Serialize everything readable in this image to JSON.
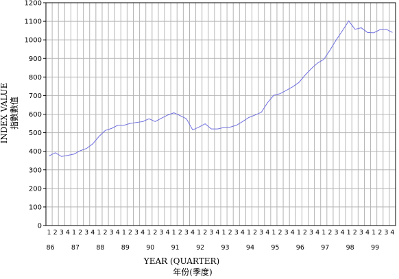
{
  "chart_data": {
    "type": "line",
    "xlabel": "YEAR (QUARTER)",
    "xlabel_zh": "年份(季度)",
    "ylabel": "INDEX VALUE",
    "ylabel_zh": "指數數值",
    "ylim": [
      0,
      1200
    ],
    "yticks": [
      0,
      100,
      200,
      300,
      400,
      500,
      600,
      700,
      800,
      900,
      1000,
      1100,
      1200
    ],
    "grid": true,
    "start_quarter": 1,
    "years": [
      "86",
      "87",
      "88",
      "89",
      "90",
      "91",
      "92",
      "93",
      "94",
      "95",
      "96",
      "97",
      "98",
      "99"
    ],
    "series": [
      {
        "color": "#7070e0",
        "values": [
          375,
          392,
          372,
          378,
          385,
          403,
          415,
          440,
          480,
          512,
          523,
          540,
          540,
          550,
          555,
          560,
          575,
          560,
          578,
          595,
          607,
          592,
          575,
          515,
          530,
          548,
          520,
          520,
          528,
          530,
          540,
          560,
          582,
          595,
          610,
          662,
          702,
          710,
          728,
          747,
          770,
          810,
          845,
          875,
          895,
          945,
          1000,
          1050,
          1102,
          1057,
          1065,
          1040,
          1038,
          1055,
          1057,
          1040
        ]
      }
    ]
  }
}
